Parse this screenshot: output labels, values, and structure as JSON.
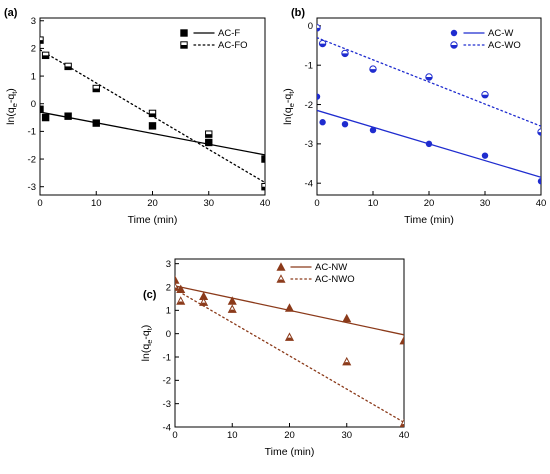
{
  "figure": {
    "panels": [
      {
        "label": "(a)"
      },
      {
        "label": "(b)"
      },
      {
        "label": "(c)"
      }
    ]
  },
  "chart_data": [
    {
      "type": "scatter",
      "panel": "(a)",
      "xlabel": "Time (min)",
      "ylabel": "ln(qe-qt)",
      "ylabel_parts": {
        "base": "ln(q",
        "sub1": "e",
        "mid": "-q",
        "sub2": "t",
        "end": ")"
      },
      "xlim": [
        0,
        40
      ],
      "ylim": [
        -3.3,
        3.1
      ],
      "xticks": [
        0,
        10,
        20,
        30,
        40
      ],
      "yticks": [
        -3,
        -2,
        -1,
        0,
        1,
        2,
        3
      ],
      "legend_position": "top-right",
      "series": [
        {
          "name": "AC-F",
          "marker": "square",
          "marker_fill": "full",
          "line_style": "solid",
          "color": "#000000",
          "x": [
            0,
            1,
            5,
            10,
            20,
            30,
            40
          ],
          "y": [
            -0.2,
            -0.5,
            -0.45,
            -0.7,
            -0.8,
            -1.4,
            -2.0
          ],
          "fit": {
            "x": [
              0,
              40
            ],
            "y": [
              -0.3,
              -1.85
            ]
          }
        },
        {
          "name": "AC-FO",
          "marker": "square",
          "marker_fill": "half",
          "line_style": "dotted",
          "color": "#000000",
          "x": [
            0,
            1,
            5,
            10,
            20,
            30,
            40
          ],
          "y": [
            2.3,
            1.75,
            1.35,
            0.55,
            -0.35,
            -1.1,
            -3.0
          ],
          "fit": {
            "x": [
              0,
              40
            ],
            "y": [
              1.95,
              -2.85
            ]
          }
        }
      ]
    },
    {
      "type": "scatter",
      "panel": "(b)",
      "xlabel": "Time (min)",
      "ylabel": "ln(qe-qt)",
      "ylabel_parts": {
        "base": "ln(q",
        "sub1": "e",
        "mid": "-q",
        "sub2": "t",
        "end": ")"
      },
      "xlim": [
        0,
        40
      ],
      "ylim": [
        -4.3,
        0.2
      ],
      "xticks": [
        0,
        10,
        20,
        30,
        40
      ],
      "yticks": [
        -4,
        -3,
        -2,
        -1,
        0
      ],
      "legend_position": "top-right",
      "series": [
        {
          "name": "AC-W",
          "marker": "circle",
          "marker_fill": "full",
          "line_style": "solid",
          "color": "#1f2ccf",
          "x": [
            0,
            1,
            5,
            10,
            20,
            30,
            40
          ],
          "y": [
            -1.8,
            -2.45,
            -2.5,
            -2.65,
            -3.0,
            -3.3,
            -3.95
          ],
          "fit": {
            "x": [
              0,
              40
            ],
            "y": [
              -2.15,
              -3.85
            ]
          }
        },
        {
          "name": "AC-WO",
          "marker": "circle",
          "marker_fill": "half",
          "line_style": "dotted",
          "color": "#1f2ccf",
          "x": [
            0,
            1,
            5,
            10,
            20,
            30,
            40
          ],
          "y": [
            -0.05,
            -0.45,
            -0.7,
            -1.1,
            -1.3,
            -1.75,
            -2.7
          ],
          "fit": {
            "x": [
              0,
              40
            ],
            "y": [
              -0.3,
              -2.55
            ]
          }
        }
      ]
    },
    {
      "type": "scatter",
      "panel": "(c)",
      "xlabel": "Time (min)",
      "ylabel": "ln(qe-qt)",
      "ylabel_parts": {
        "base": "ln(q",
        "sub1": "e",
        "mid": "-q",
        "sub2": "t",
        "end": ")"
      },
      "xlim": [
        0,
        40
      ],
      "ylim": [
        -4,
        3.2
      ],
      "xticks": [
        0,
        10,
        20,
        30,
        40
      ],
      "yticks": [
        -4,
        -3,
        -2,
        -1,
        0,
        1,
        2,
        3
      ],
      "legend_position": "top-right",
      "series": [
        {
          "name": "AC-NW",
          "marker": "triangle",
          "marker_fill": "full",
          "line_style": "solid",
          "color": "#8b3a1a",
          "x": [
            0,
            1,
            5,
            10,
            20,
            30,
            40
          ],
          "y": [
            2.3,
            1.9,
            1.6,
            1.4,
            1.1,
            0.65,
            -0.3
          ],
          "fit": {
            "x": [
              0,
              40
            ],
            "y": [
              2.05,
              -0.05
            ]
          }
        },
        {
          "name": "AC-NWO",
          "marker": "triangle",
          "marker_fill": "half",
          "line_style": "dotted",
          "color": "#8b3a1a",
          "x": [
            0,
            1,
            5,
            10,
            20,
            30,
            40
          ],
          "y": [
            2.0,
            1.4,
            1.35,
            1.05,
            -0.15,
            -1.2,
            -3.85
          ],
          "fit": {
            "x": [
              0,
              40
            ],
            "y": [
              1.9,
              -3.8
            ]
          }
        }
      ]
    }
  ]
}
